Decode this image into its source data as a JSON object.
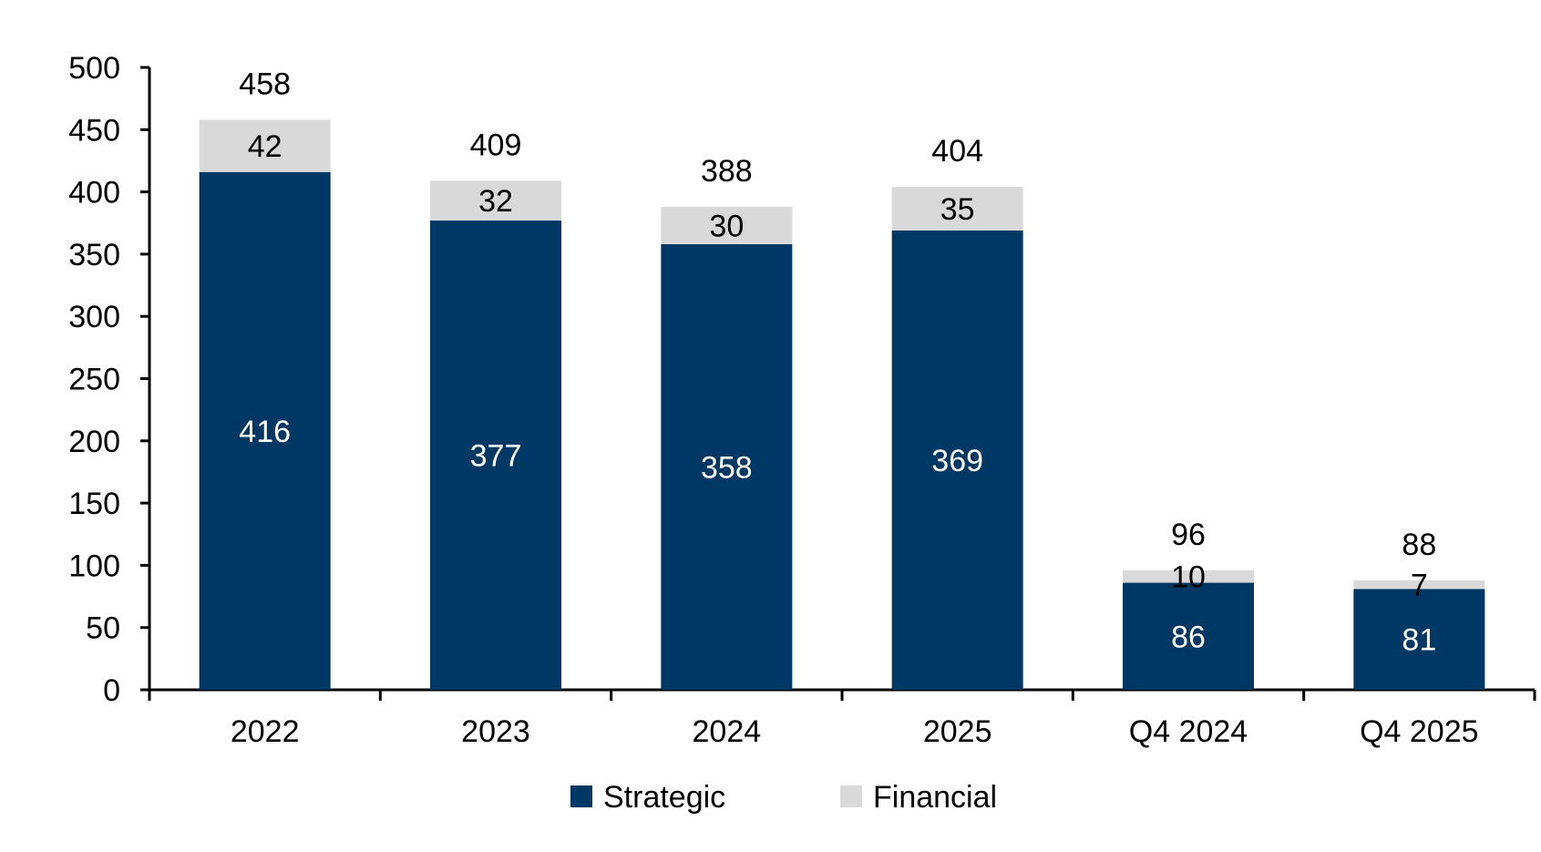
{
  "chart_data": {
    "type": "bar",
    "stacked": true,
    "categories": [
      "2022",
      "2023",
      "2024",
      "2025",
      "Q4 2024",
      "Q4 2025"
    ],
    "series": [
      {
        "name": "Strategic",
        "color": "#003865",
        "label_color": "#ffffff",
        "values": [
          416,
          377,
          358,
          369,
          86,
          81
        ]
      },
      {
        "name": "Financial",
        "color": "#d9d9d9",
        "label_color": "#000000",
        "values": [
          42,
          32,
          30,
          35,
          10,
          7
        ]
      }
    ],
    "totals": [
      458,
      409,
      388,
      404,
      96,
      88
    ],
    "yticks": [
      "0",
      "50",
      "100",
      "150",
      "200",
      "250",
      "300",
      "350",
      "400",
      "450",
      "500"
    ],
    "ylim": [
      0,
      500
    ],
    "title": "",
    "xlabel": "",
    "ylabel": "",
    "grid": false,
    "legend": {
      "position": "bottom-center",
      "items": [
        {
          "label": "Strategic",
          "color": "#003865"
        },
        {
          "label": "Financial",
          "color": "#d9d9d9"
        }
      ]
    }
  }
}
